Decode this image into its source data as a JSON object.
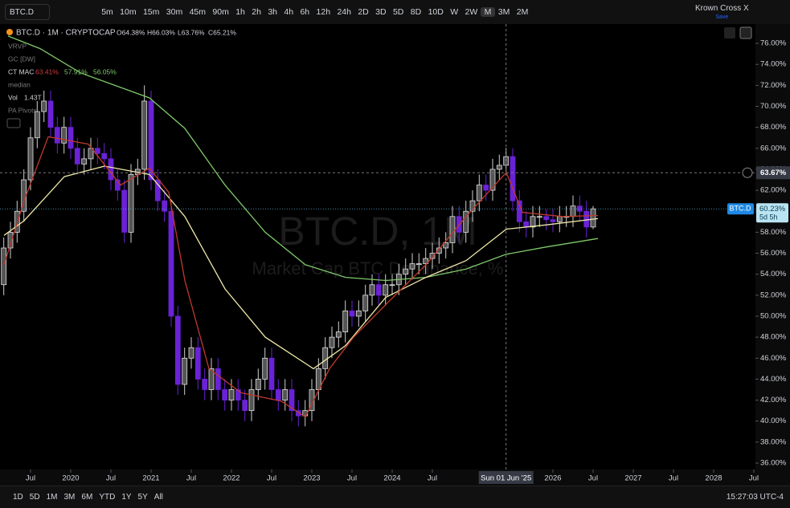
{
  "toolbar": {
    "symbol": "BTC.D",
    "intervals": [
      "5m",
      "10m",
      "15m",
      "30m",
      "45m",
      "90m",
      "1h",
      "2h",
      "3h",
      "4h",
      "6h",
      "12h",
      "24h",
      "2D",
      "3D",
      "5D",
      "8D",
      "10D",
      "W",
      "2W",
      "M",
      "3M",
      "2M"
    ],
    "active_interval": "M",
    "indicator": "Krown Cross X",
    "indicator_sub": "Save"
  },
  "legend": {
    "title": "BTC.D · 1M · CRYPTOCAP",
    "ohlc": [
      "O64.38%",
      "H66.03%",
      "L63.76%",
      "C65.21%"
    ],
    "vrvp": "VRVP",
    "gc": "GC [DW]",
    "ctmac": "CT MAC",
    "ctmac_values": [
      {
        "text": "63.41%",
        "color": "#d23c3c"
      },
      {
        "text": "57.91%",
        "color": "#7fc96b"
      },
      {
        "text": "56.05%",
        "color": "#7fc96b"
      }
    ],
    "median": "median",
    "vol": "Vol",
    "vol_value": "1.43T",
    "pa": "PA Pivots"
  },
  "bottom_bar": {
    "ranges": [
      "1D",
      "5D",
      "1M",
      "3M",
      "6M",
      "YTD",
      "1Y",
      "5Y",
      "All"
    ],
    "clock": "15:27:03 UTC-4"
  },
  "chart_data": {
    "type": "candlestick",
    "watermark": "BTC.D, 1M",
    "watermark_sub": "Market Cap BTC Dominance, %",
    "up_color": "#9a9a9a",
    "down_color": "#6a22d6",
    "x": [
      2019.167,
      2019.25,
      2019.333,
      2019.417,
      2019.5,
      2019.583,
      2019.667,
      2019.75,
      2019.833,
      2019.917,
      2020,
      2020.083,
      2020.167,
      2020.25,
      2020.333,
      2020.417,
      2020.5,
      2020.583,
      2020.667,
      2020.75,
      2020.833,
      2020.917,
      2021,
      2021.083,
      2021.167,
      2021.25,
      2021.333,
      2021.417,
      2021.5,
      2021.583,
      2021.667,
      2021.75,
      2021.833,
      2021.917,
      2022,
      2022.083,
      2022.167,
      2022.25,
      2022.333,
      2022.417,
      2022.5,
      2022.583,
      2022.667,
      2022.75,
      2022.833,
      2022.917,
      2023,
      2023.083,
      2023.167,
      2023.25,
      2023.333,
      2023.417,
      2023.5,
      2023.583,
      2023.667,
      2023.75,
      2023.833,
      2023.917,
      2024,
      2024.083,
      2024.167,
      2024.25,
      2024.333,
      2024.417,
      2024.5,
      2024.583,
      2024.667,
      2024.75,
      2024.833,
      2024.917,
      2025,
      2025.083,
      2025.167,
      2025.25,
      2025.333,
      2025.417,
      2025.5,
      2025.583,
      2025.667,
      2025.75,
      2025.833,
      2025.917,
      2026,
      2026.083,
      2026.167,
      2026.25,
      2026.333,
      2026.417,
      2026.5
    ],
    "open": [
      53,
      56.5,
      58,
      60,
      63,
      67,
      69.5,
      70.5,
      68,
      66.5,
      68,
      66,
      64.5,
      65,
      66,
      65.5,
      65,
      63,
      62,
      58,
      63.5,
      64,
      70.5,
      63,
      61,
      60,
      50,
      43.5,
      46,
      47,
      44,
      43,
      45,
      43,
      42,
      43,
      42,
      41,
      43,
      44,
      46,
      43,
      42,
      43,
      41,
      40.5,
      41,
      43,
      45,
      47,
      48,
      48.5,
      50.5,
      50,
      50.5,
      52,
      53,
      52,
      53,
      53,
      54,
      54.5,
      55,
      55,
      55.5,
      56,
      56.5,
      57,
      59.5,
      58,
      60,
      61,
      62.5,
      62,
      64,
      64.38,
      65.21,
      61,
      59,
      58.5,
      59.5,
      59.5,
      59.2,
      59,
      59.5,
      59.5,
      60.5,
      60,
      58.5
    ],
    "high": [
      57.5,
      59,
      61,
      64,
      68,
      70.5,
      71.5,
      71.5,
      69,
      69,
      69,
      67,
      66,
      67,
      67,
      66.5,
      66,
      64,
      63,
      64.5,
      65,
      72,
      71.5,
      64,
      62,
      61,
      51,
      47,
      48,
      48,
      45,
      46,
      46,
      44,
      44,
      44,
      43,
      44,
      45,
      47,
      47,
      44,
      44,
      44,
      42,
      42,
      44,
      46,
      48,
      49,
      49.5,
      51.5,
      51.5,
      51.5,
      53,
      54,
      54,
      54,
      54,
      55,
      55.5,
      56,
      56,
      56.5,
      57,
      57.5,
      58,
      60.5,
      60.5,
      61,
      62,
      63.5,
      63.5,
      65,
      65.4,
      66.03,
      66,
      62,
      60,
      60.5,
      60.5,
      60.2,
      60.2,
      60.5,
      60.5,
      61.5,
      61.5,
      61,
      60.5
    ],
    "low": [
      52,
      55.5,
      57,
      59,
      62,
      66,
      68.5,
      67,
      65.5,
      65.5,
      65,
      63.5,
      63.5,
      64,
      64.5,
      64,
      62,
      61,
      57,
      57,
      62.5,
      63,
      62,
      60,
      59,
      49,
      42.5,
      42.5,
      45,
      43,
      42,
      42,
      42,
      41,
      41,
      41,
      40,
      40,
      42,
      43,
      42,
      41,
      41,
      40,
      39.5,
      39.5,
      40,
      42,
      44,
      46,
      47,
      47.5,
      49,
      49,
      49.5,
      51,
      51,
      51,
      52,
      52,
      53,
      53.5,
      54,
      54,
      54.5,
      55,
      55.5,
      56,
      57,
      57,
      59,
      60,
      61,
      61,
      63,
      63.76,
      60,
      58,
      57.5,
      57.5,
      58.5,
      58.2,
      58,
      58,
      58.5,
      58.5,
      59,
      57.5,
      58.3
    ],
    "close": [
      56.5,
      58,
      60,
      63,
      67,
      69.5,
      70.5,
      68,
      66.5,
      68,
      66,
      64.5,
      65,
      66,
      65.5,
      65,
      63,
      62,
      58,
      63.5,
      64,
      70.5,
      63,
      61,
      60,
      50,
      43.5,
      46,
      47,
      44,
      43,
      45,
      43,
      42,
      43,
      42,
      41,
      43,
      44,
      46,
      43,
      42,
      43,
      41,
      40.5,
      41,
      43,
      45,
      47,
      48,
      48.5,
      50.5,
      50,
      50.5,
      52,
      53,
      52,
      53,
      53,
      54,
      54.5,
      55,
      55,
      55.5,
      56,
      56.5,
      57,
      59.5,
      58,
      60,
      61,
      62.5,
      62,
      64,
      64.38,
      65.21,
      61,
      59,
      58.5,
      59.5,
      59.5,
      59.2,
      59,
      59.5,
      59.5,
      60.5,
      60,
      58.5,
      60.23
    ],
    "lines": [
      {
        "color": "#7fc96b",
        "x": [
          2019.22,
          2019.62,
          2020.12,
          2020.98,
          2021.42,
          2021.92,
          2022.42,
          2022.92,
          2023.42,
          2023.92,
          2024.42,
          2024.92,
          2025.42,
          2025.92,
          2026.56
        ],
        "values": [
          76.7,
          75.5,
          73.2,
          70.8,
          67.9,
          62.5,
          58,
          54.9,
          53.7,
          53.4,
          53.7,
          54.5,
          55.9,
          56.6,
          57.4
        ]
      },
      {
        "color": "#efe8a8",
        "x": [
          2019.17,
          2019.42,
          2019.92,
          2020.42,
          2020.98,
          2021.42,
          2021.92,
          2022.42,
          2023.02,
          2023.42,
          2023.92,
          2024.42,
          2024.92,
          2025.42,
          2025.92,
          2026.56
        ],
        "values": [
          57.7,
          59.1,
          63.3,
          64.3,
          63.5,
          59.5,
          52.6,
          48,
          45,
          47.2,
          51.8,
          53.7,
          55.3,
          58.3,
          58.7,
          59.3
        ]
      },
      {
        "color": "#c0392b",
        "x": [
          2019.17,
          2019.42,
          2019.72,
          2020.22,
          2020.62,
          2020.98,
          2021.22,
          2021.42,
          2021.72,
          2022.12,
          2022.62,
          2022.92,
          2023.22,
          2023.52,
          2023.92,
          2024.42,
          2024.92,
          2025.42,
          2025.62,
          2026.12,
          2026.56
        ],
        "values": [
          54.9,
          61,
          67.1,
          66.4,
          62.5,
          64.1,
          61.8,
          53.4,
          45,
          42.7,
          41.9,
          40.4,
          45,
          48,
          51.1,
          54.9,
          59.5,
          63.7,
          59.9,
          59.5,
          59.6
        ]
      }
    ],
    "xlim": [
      2019.12,
      2028.52
    ],
    "ylim": [
      35.39,
      77.84
    ],
    "xticks": [
      {
        "value": 2019.5,
        "label": "Jul"
      },
      2020,
      {
        "value": 2020.5,
        "label": "Jul"
      },
      2021,
      {
        "value": 2021.5,
        "label": "Jul"
      },
      2022,
      {
        "value": 2022.5,
        "label": "Jul"
      },
      2023,
      {
        "value": 2023.5,
        "label": "Jul"
      },
      2024,
      {
        "value": 2024.5,
        "label": "Jul"
      },
      2026,
      {
        "value": 2026.5,
        "label": "Jul"
      },
      2027,
      {
        "value": 2027.5,
        "label": "Jul"
      },
      2028,
      {
        "value": 2028.5,
        "label": "Jul"
      }
    ],
    "yticks": [
      {
        "value": 36,
        "label": "36.00%"
      },
      {
        "value": 38,
        "label": "38.00%"
      },
      {
        "value": 40,
        "label": "40.00%"
      },
      {
        "value": 42,
        "label": "42.00%"
      },
      {
        "value": 44,
        "label": "44.00%"
      },
      {
        "value": 46,
        "label": "46.00%"
      },
      {
        "value": 48,
        "label": "48.00%"
      },
      {
        "value": 50,
        "label": "50.00%"
      },
      {
        "value": 52,
        "label": "52.00%"
      },
      {
        "value": 54,
        "label": "54.00%"
      },
      {
        "value": 56,
        "label": "56.00%"
      },
      {
        "value": 58,
        "label": "58.00%"
      },
      {
        "value": 60,
        "label": "60.00%"
      },
      {
        "value": 62,
        "label": "62.00%"
      },
      {
        "value": 64,
        "label": "64.00%"
      },
      {
        "value": 66,
        "label": "66.00%"
      },
      {
        "value": 68,
        "label": "68.00%"
      },
      {
        "value": 70,
        "label": "70.00%"
      },
      {
        "value": 72,
        "label": "72.00%"
      },
      {
        "value": 74,
        "label": "74.00%"
      },
      {
        "value": 76,
        "label": "76.00%"
      }
    ],
    "crosshair": {
      "value": 63.67,
      "label": "63.67%",
      "x": 2025.417,
      "x_label": "Sun 01 Jun '25"
    },
    "last_price": {
      "value": 60.23,
      "label": "60.23%",
      "symbol": "BTC.D",
      "countdown": "5d 5h"
    }
  }
}
